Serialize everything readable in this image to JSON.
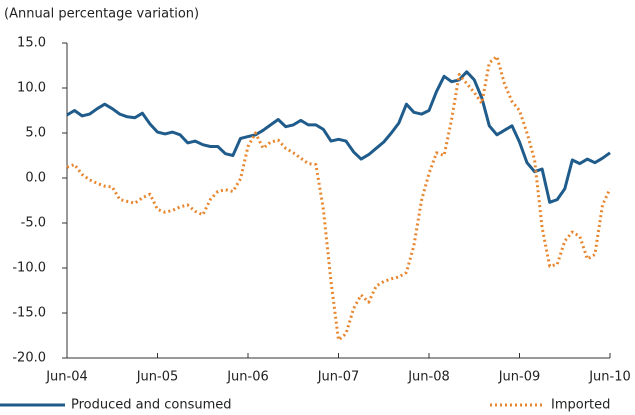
{
  "chart_data": {
    "type": "line",
    "subtitle": "(Annual percentage variation)",
    "categories": [
      "Jun-04",
      null,
      null,
      null,
      null,
      null,
      null,
      null,
      null,
      null,
      null,
      null,
      "Jun-05",
      null,
      null,
      null,
      null,
      null,
      null,
      null,
      null,
      null,
      null,
      null,
      "Jun-06",
      null,
      null,
      null,
      null,
      null,
      null,
      null,
      null,
      null,
      null,
      null,
      "Jun-07",
      null,
      null,
      null,
      null,
      null,
      null,
      null,
      null,
      null,
      null,
      null,
      "Jun-08",
      null,
      null,
      null,
      null,
      null,
      null,
      null,
      null,
      null,
      null,
      null,
      "Jun-09",
      null,
      null,
      null,
      null,
      null,
      null,
      null,
      null,
      null,
      null,
      null,
      "Jun-10"
    ],
    "series": [
      {
        "name": "Produced and consumed",
        "color": "#1f5c8b",
        "dash": "solid",
        "values": [
          7.0,
          7.5,
          6.9,
          7.1,
          7.7,
          8.2,
          7.7,
          7.1,
          6.8,
          6.7,
          7.2,
          6.0,
          5.1,
          4.9,
          5.1,
          4.8,
          3.9,
          4.1,
          3.7,
          3.5,
          3.5,
          2.7,
          2.5,
          4.4,
          4.6,
          4.8,
          5.3,
          5.9,
          6.5,
          5.7,
          5.9,
          6.4,
          5.9,
          5.9,
          5.4,
          4.1,
          4.3,
          4.1,
          2.9,
          2.1,
          2.6,
          3.3,
          4.0,
          5.0,
          6.1,
          8.2,
          7.3,
          7.1,
          7.5,
          9.6,
          11.3,
          10.7,
          10.9,
          11.8,
          10.9,
          8.9,
          5.8,
          4.8,
          5.3,
          5.8,
          4.0,
          1.7,
          0.7,
          1.0,
          -2.7,
          -2.4,
          -1.2,
          2.0,
          1.6,
          2.1,
          1.7,
          2.2,
          2.8
        ]
      },
      {
        "name": "Imported",
        "color": "#e8862e",
        "dash": "dotted",
        "values": [
          1.2,
          1.5,
          0.4,
          -0.2,
          -0.6,
          -0.9,
          -1.0,
          -2.4,
          -2.6,
          -2.8,
          -2.2,
          -1.8,
          -3.5,
          -3.8,
          -3.6,
          -3.2,
          -3.0,
          -3.7,
          -4.1,
          -2.4,
          -1.5,
          -1.3,
          -1.5,
          -0.1,
          3.5,
          5.0,
          3.3,
          4.0,
          4.2,
          3.3,
          2.8,
          2.2,
          1.6,
          1.5,
          -3.5,
          -11.5,
          -18.0,
          -17.3,
          -14.5,
          -13.0,
          -13.8,
          -12.0,
          -11.5,
          -11.2,
          -11.0,
          -10.5,
          -7.5,
          -2.5,
          0.5,
          2.8,
          2.5,
          6.5,
          11.5,
          10.5,
          9.5,
          8.3,
          12.8,
          13.5,
          10.5,
          8.5,
          7.5,
          5.0,
          2.0,
          -5.5,
          -9.8,
          -9.6,
          -7.0,
          -6.0,
          -6.5,
          -9.0,
          -8.5,
          -3.0,
          -1.2
        ]
      }
    ],
    "ylim": [
      -20,
      15
    ],
    "yticks": [
      {
        "value": -20,
        "label": "-20.0"
      },
      {
        "value": -15,
        "label": "-15.0"
      },
      {
        "value": -10,
        "label": "-10.0"
      },
      {
        "value": -5,
        "label": "-5.0"
      },
      {
        "value": 0,
        "label": "0.0"
      },
      {
        "value": 5,
        "label": "5.0"
      },
      {
        "value": 10,
        "label": "10.0"
      },
      {
        "value": 15,
        "label": "15.0"
      }
    ],
    "grid": false
  }
}
